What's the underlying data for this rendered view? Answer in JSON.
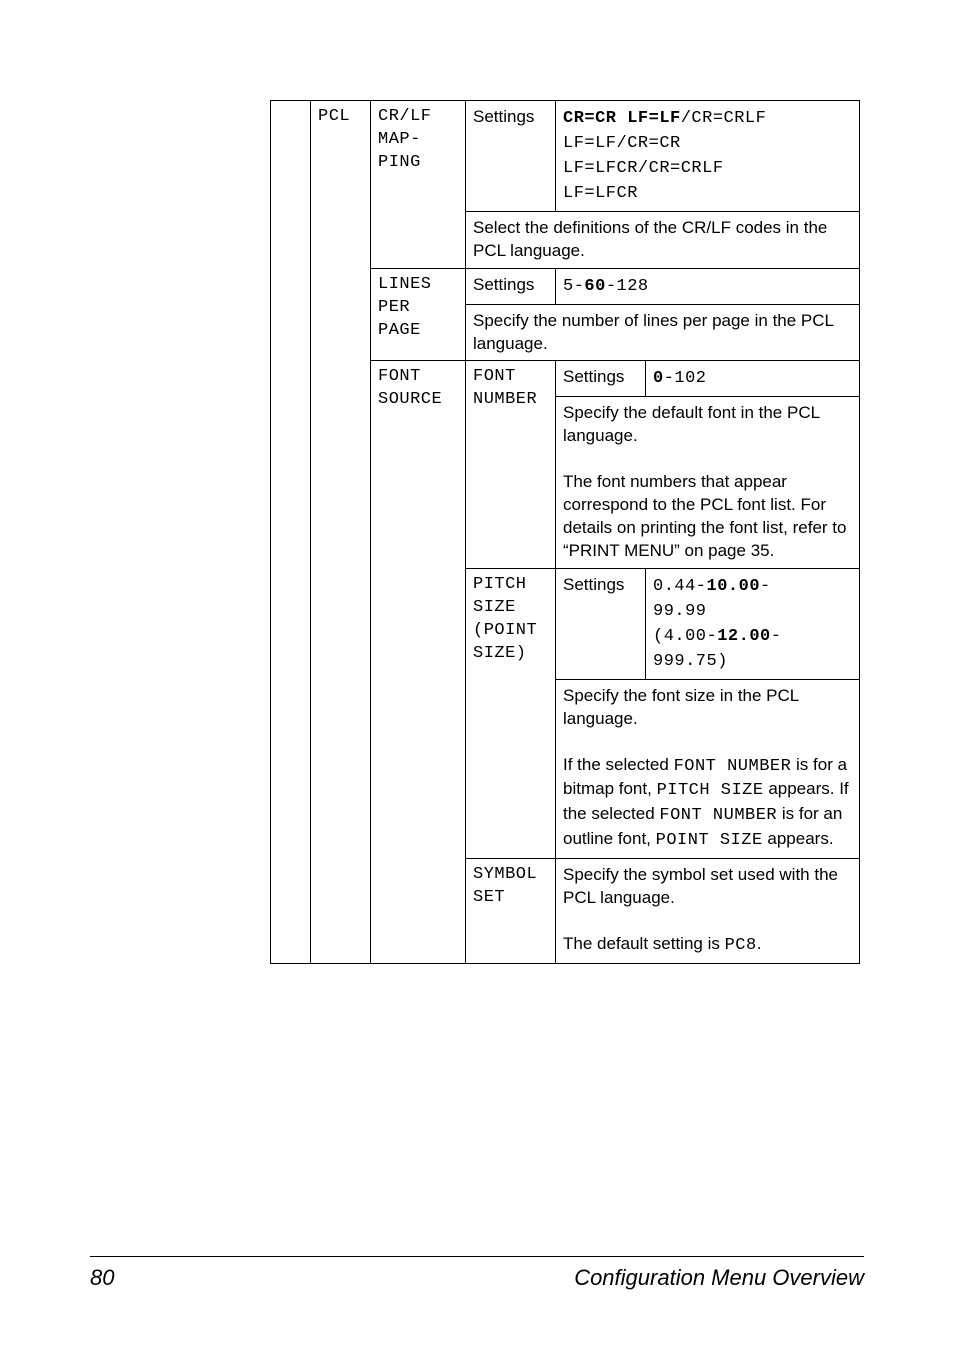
{
  "col1": "",
  "col2": "PCL",
  "crlf": {
    "name": "CR/LF\nMAP-\nPING",
    "settingsLabel": "Settings",
    "options": "<span class='mono bold'>CR=CR LF=LF</span><span class='mono'>/CR=CRLF<br>LF=LF/CR=CR<br>LF=LFCR/CR=CRLF<br>LF=LFCR</span>",
    "desc": "Select the definitions of the CR/LF codes in the PCL language."
  },
  "lines": {
    "name": "LINES\nPER\nPAGE",
    "settingsLabel": "Settings",
    "range": "<span class='mono'>5-</span><span class='mono bold'>60</span><span class='mono'>-128</span>",
    "desc": "Specify the number of lines per page in the PCL language."
  },
  "fontSource": {
    "name": "FONT\nSOURCE",
    "fontNumber": {
      "name": "FONT\nNUMBER",
      "settingsLabel": "Settings",
      "range": "<span class='mono bold'>0</span><span class='mono'>-102</span>",
      "desc": "Specify the default font in the PCL language.<br><br>The font numbers that appear correspond to the PCL font list. For details on printing the font list, refer to &ldquo;PRINT MENU&rdquo; on page 35."
    },
    "pitch": {
      "name": "PITCH\nSIZE\n(POINT\nSIZE)",
      "settingsLabel": "Settings",
      "range": "<span class='mono'>0.44-</span><span class='mono bold'>10.00</span><span class='mono'>-<br>99.99<br>(4.00-</span><span class='mono bold'>12.00</span><span class='mono'>-<br>999.75)</span>",
      "desc": "Specify the font size in the PCL language.<br><br>If the selected <span class='mono'>FONT NUMBER</span> is for a bitmap font, <span class='mono'>PITCH SIZE</span> appears. If the selected <span class='mono'>FONT NUMBER</span> is for an outline font, <span class='mono'>POINT SIZE</span> appears."
    },
    "symbol": {
      "name": "SYMBOL\nSET",
      "desc": "Specify the symbol set used with the PCL language.<br><br>The default setting is <span class='mono'>PC8</span>."
    }
  },
  "footer": {
    "page": "80",
    "title": "Configuration Menu Overview"
  }
}
